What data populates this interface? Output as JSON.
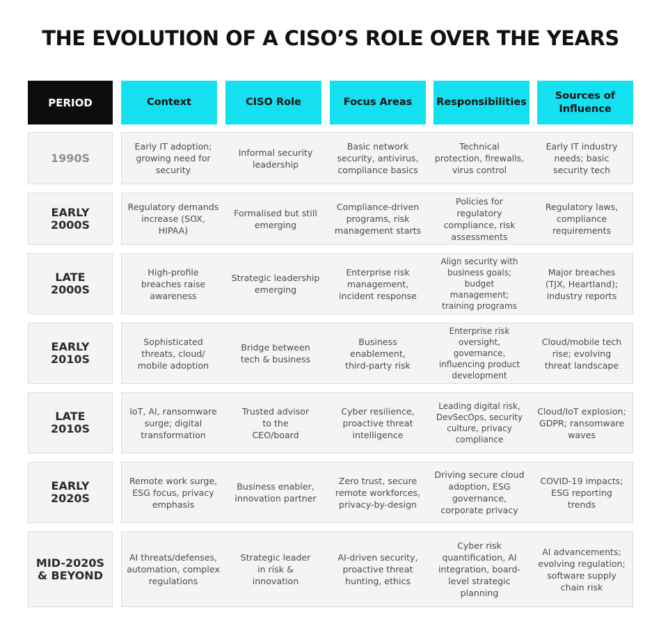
{
  "title": "THE EVOLUTION OF A CISO’S ROLE OVER THE YEARS",
  "header": {
    "period": "PERIOD",
    "columns": [
      "Context",
      "CISO Role",
      "Focus Areas",
      "Responsibilities",
      "Sources of Influence"
    ]
  },
  "rows": [
    {
      "period": "1990S",
      "cells": [
        "Early IT adoption; growing need for security",
        "Informal security leadership",
        "Basic network security, antivirus, compliance basics",
        "Technical protection, firewalls, virus control",
        "Early IT industry needs; basic security tech"
      ]
    },
    {
      "period": "EARLY 2000S",
      "cells": [
        "Regulatory demands increase (SOX, HIPAA)",
        "Formalised but still emerging",
        "Compliance-driven programs, risk management starts",
        "Policies for regulatory compliance, risk assessments",
        "Regulatory laws, compliance requirements"
      ]
    },
    {
      "period": "LATE 2000S",
      "cells": [
        "High-profile breaches raise awareness",
        "Strategic leadership emerging",
        "Enterprise risk management, incident response",
        "Align security with business goals; budget management; training programs",
        "Major breaches (TJX, Heartland); industry reports"
      ]
    },
    {
      "period": "EARLY 2010S",
      "cells": [
        "Sophisticated threats, cloud/ mobile adoption",
        "Bridge between tech & business",
        "Business enablement, third-party risk",
        "Enterprise risk oversight, governance, influencing product development",
        "Cloud/mobile tech rise; evolving threat landscape"
      ]
    },
    {
      "period": "LATE 2010S",
      "cells": [
        "IoT, AI, ransomware surge; digital transformation",
        "Trusted advisor to the CEO/board",
        "Cyber resilience, proactive threat intelligence",
        "Leading digital risk, DevSecOps, security culture, privacy compliance",
        "Cloud/IoT explosion; GDPR; ransomware waves"
      ]
    },
    {
      "period": "EARLY 2020S",
      "cells": [
        "Remote work surge, ESG focus, privacy emphasis",
        "Business enabler, innovation partner",
        "Zero trust, secure remote workforces, privacy-by-design",
        "Driving secure cloud adoption, ESG governance, corporate privacy",
        "COVID-19 impacts; ESG reporting trends"
      ]
    },
    {
      "period": "MID-2020S & BEYOND",
      "cells": [
        "AI threats/defenses, automation, complex regulations",
        "Strategic leader in risk & innovation",
        "AI-driven security, proactive threat hunting, ethics",
        "Cyber risk quantification, AI integration, board-level strategic planning",
        "AI advancements; evolving regulation; software supply chain risk"
      ]
    }
  ],
  "colors": {
    "header_period_bg": "#0d0d0d",
    "header_bg": "#14e0f0",
    "row_bg": "#f3f4f5",
    "row_border": "#d9dcdf"
  }
}
